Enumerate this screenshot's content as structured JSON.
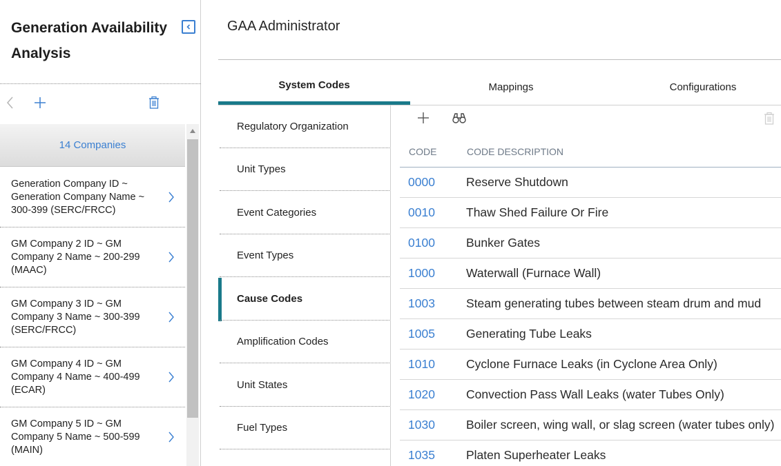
{
  "sidebar": {
    "title": "Generation Availability Analysis",
    "list_header": "14 Companies",
    "companies": [
      "Generation Company ID ~ Generation Company Name ~ 300-399 (SERC/FRCC)",
      "GM Company 2 ID ~ GM Company 2 Name ~ 200-299 (MAAC)",
      "GM Company 3 ID ~ GM Company 3 Name ~ 300-399 (SERC/FRCC)",
      "GM Company 4 ID ~ GM Company 4 Name ~ 400-499 (ECAR)",
      "GM Company 5 ID ~ GM Company 5 Name ~ 500-599 (MAIN)"
    ]
  },
  "main": {
    "title": "GAA Administrator",
    "tabs": [
      "System Codes",
      "Mappings",
      "Configurations"
    ],
    "active_tab": "System Codes",
    "subnav": [
      "Regulatory Organization",
      "Unit Types",
      "Event Categories",
      "Event Types",
      "Cause Codes",
      "Amplification Codes",
      "Unit States",
      "Fuel Types"
    ],
    "active_subnav": "Cause Codes",
    "grid": {
      "columns": [
        "CODE",
        "CODE DESCRIPTION"
      ],
      "rows": [
        {
          "code": "0000",
          "description": "Reserve Shutdown"
        },
        {
          "code": "0010",
          "description": "Thaw Shed Failure Or Fire"
        },
        {
          "code": "0100",
          "description": "Bunker Gates"
        },
        {
          "code": "1000",
          "description": "Waterwall (Furnace Wall)"
        },
        {
          "code": "1003",
          "description": "Steam generating tubes between steam drum and mud"
        },
        {
          "code": "1005",
          "description": "Generating Tube Leaks"
        },
        {
          "code": "1010",
          "description": "Cyclone Furnace Leaks (in Cyclone Area Only)"
        },
        {
          "code": "1020",
          "description": "Convection Pass Wall Leaks (water Tubes Only)"
        },
        {
          "code": "1030",
          "description": "Boiler screen, wing wall, or slag screen (water tubes only)"
        },
        {
          "code": "1035",
          "description": "Platen Superheater Leaks"
        }
      ]
    }
  },
  "icons": {
    "collapse": "chevron-left-icon",
    "back": "chevron-left-icon",
    "add": "plus-icon",
    "delete": "trash-icon",
    "search": "binoculars-icon",
    "row_open": "chevron-right-icon"
  },
  "colors": {
    "accent": "#1a7a8a",
    "link": "#3a7fd1"
  }
}
